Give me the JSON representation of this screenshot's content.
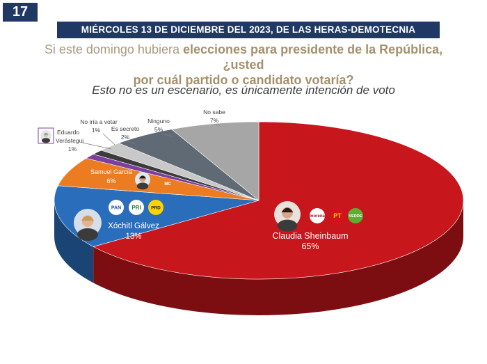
{
  "page_number": "17",
  "header": {
    "date_source": "MIÉRCOLES 13 DE DICIEMBRE DEL 2023, DE LAS HERAS-DEMOTECNIA"
  },
  "question": {
    "part1": "Si este domingo hubiera ",
    "part2": "elecciones para presidente de la República, ¿usted",
    "part3": "por cuál partido o candidato votaría?"
  },
  "note": "Esto no es un escenario, es únicamente intención de voto",
  "colors": {
    "sheinbaum": "#c8161d",
    "galvez": "#2a6ebb",
    "garcia": "#ec7c22",
    "verastegui": "#7b3fa0",
    "no_iria": "#3c3c3c",
    "secreto": "#c8c8c8",
    "ninguno": "#5f6a75",
    "no_sabe": "#a6a6a6"
  },
  "party_logos": {
    "sheinbaum": [
      "morena",
      "PT",
      "VERDE"
    ],
    "galvez": [
      "PAN",
      "PRI",
      "PRD"
    ],
    "garcia": [
      "MC"
    ]
  },
  "chart_data": {
    "type": "pie",
    "title": "Si este domingo hubiera elecciones para presidente de la República, ¿usted por cuál partido o candidato votaría?",
    "unit": "%",
    "slices": [
      {
        "label": "Claudia Sheinbaum",
        "value": 65,
        "value_label": "65%"
      },
      {
        "label": "Xóchitl Gálvez",
        "value": 13,
        "value_label": "13%"
      },
      {
        "label": "Samuel García",
        "value": 6,
        "value_label": "6%"
      },
      {
        "label": "Eduardo Verástegui",
        "value": 1,
        "value_label": "1%"
      },
      {
        "label": "No iría a votar",
        "value": 1,
        "value_label": "1%"
      },
      {
        "label": "Es secreto",
        "value": 2,
        "value_label": "2%"
      },
      {
        "label": "Ninguno",
        "value": 5,
        "value_label": "5%"
      },
      {
        "label": "No sabe",
        "value": 7,
        "value_label": "7%"
      }
    ]
  }
}
